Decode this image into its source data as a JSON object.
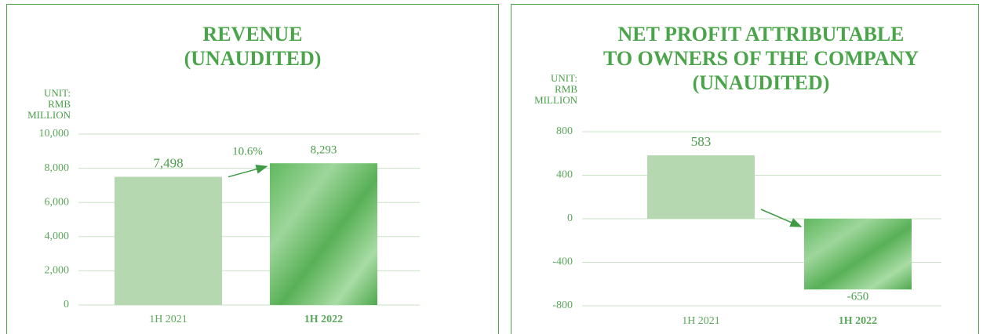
{
  "chart_data": [
    {
      "type": "bar",
      "title": [
        "REVENUE",
        "(UNAUDITED)"
      ],
      "unit": [
        "UNIT:",
        "RMB",
        "MILLION"
      ],
      "categories": [
        "1H 2021",
        "1H 2022"
      ],
      "values": [
        7498,
        8293
      ],
      "value_labels": [
        "7,498",
        "8,293"
      ],
      "colors": [
        "#b5d8b1",
        "#6cbf6a"
      ],
      "annotation": "10.6%",
      "ylim": [
        0,
        10000
      ],
      "yticks": [
        0,
        {
          "value": 2000,
          "label": "2,000"
        },
        {
          "value": 4000,
          "label": "4,000"
        },
        {
          "value": 6000,
          "label": "6,000"
        },
        {
          "value": 8000,
          "label": "8,000"
        },
        {
          "value": 10000,
          "label": "10,000"
        }
      ],
      "grid": true
    },
    {
      "type": "bar",
      "title": [
        "NET PROFIT ATTRIBUTABLE",
        "TO OWNERS OF THE COMPANY",
        "(UNAUDITED)"
      ],
      "unit": [
        "UNIT:",
        "RMB",
        "MILLION"
      ],
      "categories": [
        "1H 2021",
        "1H 2022"
      ],
      "values": [
        583,
        -650
      ],
      "colors": [
        "#b5d8b1",
        "#6cbf6a"
      ],
      "ylim": [
        -800,
        800
      ],
      "yticks": [
        -800,
        -400,
        0,
        400,
        800
      ],
      "grid": true
    }
  ]
}
